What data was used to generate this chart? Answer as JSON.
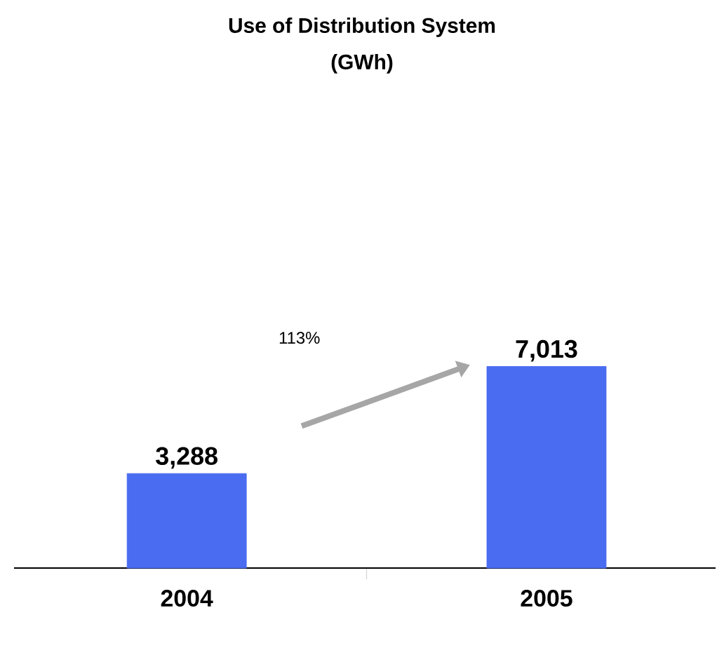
{
  "chart_data": {
    "type": "bar",
    "title": "Use of Distribution System",
    "subtitle": "(GWh)",
    "categories": [
      "2004",
      "2005"
    ],
    "values": [
      3288,
      7013
    ],
    "value_labels": [
      "3,288",
      "7,013"
    ],
    "color": "#4a6cf0",
    "annotations": [
      "113%"
    ]
  }
}
